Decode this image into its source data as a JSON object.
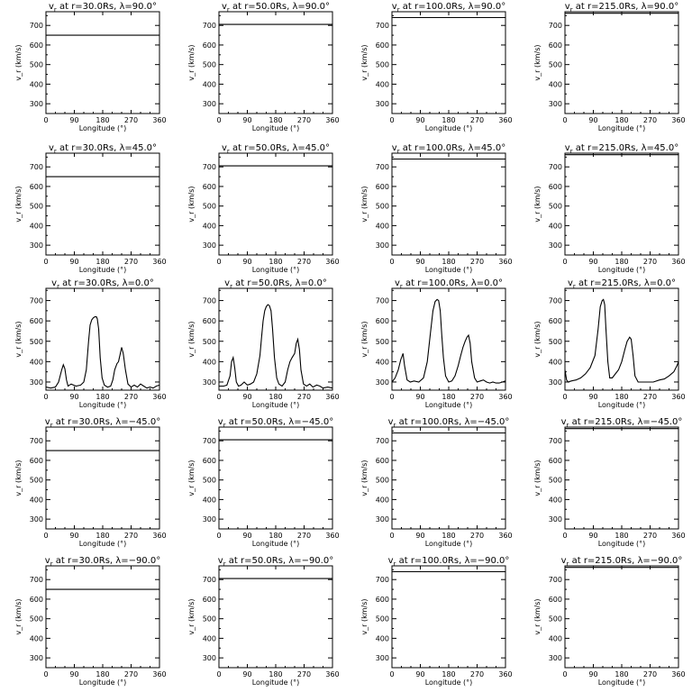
{
  "chart_data": [
    {
      "type": "line",
      "title": "v_r at r=30.0Rs, λ=90.0°",
      "title_main": "v",
      "title_sub": "r",
      "title_rest": " at r=30.0Rs, λ=90.0°",
      "xlabel": "Longitude (°)",
      "ylabel": "v_r (km/s)",
      "xlim": [
        0,
        360
      ],
      "ylim": [
        250,
        770
      ],
      "xticks": [
        0,
        90,
        180,
        270,
        360
      ],
      "yticks": [
        300,
        400,
        500,
        600,
        700
      ],
      "grid": false,
      "series": [
        {
          "x": [
            0,
            360
          ],
          "y": [
            650,
            650
          ]
        }
      ]
    },
    {
      "type": "line",
      "title": "v_r at r=50.0Rs, λ=90.0°",
      "title_main": "v",
      "title_sub": "r",
      "title_rest": " at r=50.0Rs, λ=90.0°",
      "xlabel": "Longitude (°)",
      "ylabel": "v_r (km/s)",
      "xlim": [
        0,
        360
      ],
      "ylim": [
        250,
        770
      ],
      "xticks": [
        0,
        90,
        180,
        270,
        360
      ],
      "yticks": [
        300,
        400,
        500,
        600,
        700
      ],
      "grid": false,
      "series": [
        {
          "x": [
            0,
            360
          ],
          "y": [
            705,
            705
          ]
        }
      ]
    },
    {
      "type": "line",
      "title": "v_r at r=100.0Rs, λ=90.0°",
      "title_main": "v",
      "title_sub": "r",
      "title_rest": " at r=100.0Rs, λ=90.0°",
      "xlabel": "Longitude (°)",
      "ylabel": "v_r (km/s)",
      "xlim": [
        0,
        360
      ],
      "ylim": [
        250,
        770
      ],
      "xticks": [
        0,
        90,
        180,
        270,
        360
      ],
      "yticks": [
        300,
        400,
        500,
        600,
        700
      ],
      "grid": false,
      "series": [
        {
          "x": [
            0,
            360
          ],
          "y": [
            740,
            740
          ]
        }
      ]
    },
    {
      "type": "line",
      "title": "v_r at r=215.0Rs, λ=90.0°",
      "title_main": "v",
      "title_sub": "r",
      "title_rest": " at r=215.0Rs, λ=90.0°",
      "xlabel": "Longitude (°)",
      "ylabel": "v_r (km/s)",
      "xlim": [
        0,
        360
      ],
      "ylim": [
        250,
        770
      ],
      "xticks": [
        0,
        90,
        180,
        270,
        360
      ],
      "yticks": [
        300,
        400,
        500,
        600,
        700
      ],
      "grid": false,
      "series": [
        {
          "x": [
            0,
            360
          ],
          "y": [
            762,
            762
          ]
        }
      ]
    },
    {
      "type": "line",
      "title": "v_r at r=30.0Rs, λ=45.0°",
      "title_main": "v",
      "title_sub": "r",
      "title_rest": " at r=30.0Rs, λ=45.0°",
      "xlabel": "Longitude (°)",
      "ylabel": "v_r (km/s)",
      "xlim": [
        0,
        360
      ],
      "ylim": [
        250,
        770
      ],
      "xticks": [
        0,
        90,
        180,
        270,
        360
      ],
      "yticks": [
        300,
        400,
        500,
        600,
        700
      ],
      "grid": false,
      "series": [
        {
          "x": [
            0,
            360
          ],
          "y": [
            650,
            650
          ]
        }
      ]
    },
    {
      "type": "line",
      "title": "v_r at r=50.0Rs, λ=45.0°",
      "title_main": "v",
      "title_sub": "r",
      "title_rest": " at r=50.0Rs, λ=45.0°",
      "xlabel": "Longitude (°)",
      "ylabel": "v_r (km/s)",
      "xlim": [
        0,
        360
      ],
      "ylim": [
        250,
        770
      ],
      "xticks": [
        0,
        90,
        180,
        270,
        360
      ],
      "yticks": [
        300,
        400,
        500,
        600,
        700
      ],
      "grid": false,
      "series": [
        {
          "x": [
            0,
            360
          ],
          "y": [
            705,
            705
          ]
        }
      ]
    },
    {
      "type": "line",
      "title": "v_r at r=100.0Rs, λ=45.0°",
      "title_main": "v",
      "title_sub": "r",
      "title_rest": " at r=100.0Rs, λ=45.0°",
      "xlabel": "Longitude (°)",
      "ylabel": "v_r (km/s)",
      "xlim": [
        0,
        360
      ],
      "ylim": [
        250,
        770
      ],
      "xticks": [
        0,
        90,
        180,
        270,
        360
      ],
      "yticks": [
        300,
        400,
        500,
        600,
        700
      ],
      "grid": false,
      "series": [
        {
          "x": [
            0,
            360
          ],
          "y": [
            740,
            740
          ]
        }
      ]
    },
    {
      "type": "line",
      "title": "v_r at r=215.0Rs, λ=45.0°",
      "title_main": "v",
      "title_sub": "r",
      "title_rest": " at r=215.0Rs, λ=45.0°",
      "xlabel": "Longitude (°)",
      "ylabel": "v_r (km/s)",
      "xlim": [
        0,
        360
      ],
      "ylim": [
        250,
        770
      ],
      "xticks": [
        0,
        90,
        180,
        270,
        360
      ],
      "yticks": [
        300,
        400,
        500,
        600,
        700
      ],
      "grid": false,
      "series": [
        {
          "x": [
            0,
            360
          ],
          "y": [
            762,
            762
          ]
        }
      ]
    },
    {
      "type": "line",
      "title": "v_r at r=30.0Rs, λ=0.0°",
      "title_main": "v",
      "title_sub": "r",
      "title_rest": " at r=30.0Rs, λ=0.0°",
      "xlabel": "Longitude (°)",
      "ylabel": "v_r (km/s)",
      "xlim": [
        0,
        360
      ],
      "ylim": [
        260,
        760
      ],
      "xticks": [
        0,
        90,
        180,
        270,
        360
      ],
      "yticks": [
        300,
        400,
        500,
        600,
        700
      ],
      "grid": false,
      "series": [
        {
          "x": [
            0,
            15,
            30,
            40,
            50,
            55,
            60,
            65,
            70,
            80,
            95,
            110,
            120,
            128,
            135,
            140,
            145,
            150,
            155,
            160,
            163,
            167,
            172,
            178,
            185,
            195,
            205,
            212,
            218,
            225,
            230,
            235,
            240,
            245,
            252,
            260,
            270,
            280,
            290,
            300,
            310,
            320,
            330,
            340,
            350,
            360
          ],
          "y": [
            275,
            270,
            275,
            300,
            360,
            385,
            365,
            310,
            280,
            290,
            280,
            285,
            300,
            360,
            500,
            580,
            605,
            615,
            620,
            620,
            610,
            560,
            420,
            320,
            285,
            275,
            280,
            310,
            360,
            390,
            400,
            435,
            470,
            440,
            360,
            290,
            275,
            285,
            275,
            290,
            280,
            270,
            275,
            270,
            280,
            285
          ]
        }
      ]
    },
    {
      "type": "line",
      "title": "v_r at r=50.0Rs, λ=0.0°",
      "title_main": "v",
      "title_sub": "r",
      "title_rest": " at r=50.0Rs, λ=0.0°",
      "xlabel": "Longitude (°)",
      "ylabel": "v_r (km/s)",
      "xlim": [
        0,
        360
      ],
      "ylim": [
        260,
        760
      ],
      "xticks": [
        0,
        90,
        180,
        270,
        360
      ],
      "yticks": [
        300,
        400,
        500,
        600,
        700
      ],
      "grid": false,
      "series": [
        {
          "x": [
            0,
            15,
            25,
            35,
            40,
            45,
            50,
            55,
            62,
            70,
            80,
            90,
            100,
            110,
            120,
            130,
            135,
            140,
            145,
            150,
            155,
            160,
            165,
            170,
            176,
            183,
            190,
            200,
            210,
            218,
            225,
            232,
            240,
            245,
            250,
            255,
            260,
            268,
            278,
            288,
            298,
            310,
            320,
            330,
            345,
            360
          ],
          "y": [
            280,
            280,
            285,
            330,
            400,
            420,
            370,
            300,
            280,
            285,
            300,
            285,
            290,
            300,
            340,
            430,
            520,
            600,
            650,
            670,
            680,
            675,
            650,
            560,
            420,
            320,
            290,
            280,
            300,
            360,
            400,
            420,
            440,
            490,
            510,
            460,
            360,
            290,
            280,
            290,
            275,
            285,
            280,
            270,
            275,
            270
          ]
        }
      ]
    },
    {
      "type": "line",
      "title": "v_r at r=100.0Rs, λ=0.0°",
      "title_main": "v",
      "title_sub": "r",
      "title_rest": " at r=100.0Rs, λ=0.0°",
      "xlabel": "Longitude (°)",
      "ylabel": "v_r (km/s)",
      "xlim": [
        0,
        360
      ],
      "ylim": [
        260,
        760
      ],
      "xticks": [
        0,
        90,
        180,
        270,
        360
      ],
      "yticks": [
        300,
        400,
        500,
        600,
        700
      ],
      "grid": false,
      "series": [
        {
          "x": [
            0,
            10,
            20,
            28,
            35,
            40,
            48,
            58,
            70,
            85,
            100,
            112,
            122,
            130,
            137,
            143,
            148,
            153,
            158,
            163,
            170,
            180,
            190,
            200,
            210,
            218,
            225,
            232,
            238,
            243,
            248,
            253,
            262,
            270,
            280,
            290,
            300,
            310,
            320,
            330,
            340,
            350,
            360
          ],
          "y": [
            300,
            320,
            360,
            410,
            440,
            380,
            310,
            300,
            305,
            300,
            320,
            400,
            540,
            650,
            695,
            705,
            700,
            650,
            530,
            420,
            330,
            300,
            305,
            330,
            380,
            430,
            470,
            500,
            520,
            530,
            490,
            400,
            320,
            300,
            305,
            310,
            300,
            295,
            300,
            295,
            295,
            300,
            305
          ]
        }
      ]
    },
    {
      "type": "line",
      "title": "v_r at r=215.0Rs, λ=0.0°",
      "title_main": "v",
      "title_sub": "r",
      "title_rest": " at r=215.0Rs, λ=0.0°",
      "xlabel": "Longitude (°)",
      "ylabel": "v_r (km/s)",
      "xlim": [
        0,
        360
      ],
      "ylim": [
        260,
        760
      ],
      "xticks": [
        0,
        90,
        180,
        270,
        360
      ],
      "yticks": [
        300,
        400,
        500,
        600,
        700
      ],
      "grid": false,
      "series": [
        {
          "x": [
            0,
            5,
            10,
            20,
            35,
            50,
            65,
            80,
            95,
            105,
            112,
            118,
            122,
            126,
            130,
            136,
            142,
            150,
            160,
            170,
            180,
            190,
            197,
            205,
            210,
            216,
            222,
            232,
            245,
            260,
            280,
            300,
            315,
            330,
            345,
            355,
            360
          ],
          "y": [
            360,
            310,
            300,
            305,
            310,
            320,
            340,
            370,
            430,
            560,
            670,
            700,
            705,
            680,
            560,
            400,
            320,
            320,
            340,
            360,
            400,
            460,
            500,
            520,
            510,
            430,
            330,
            300,
            300,
            300,
            300,
            310,
            315,
            330,
            350,
            380,
            400
          ]
        }
      ]
    },
    {
      "type": "line",
      "title": "v_r at r=30.0Rs, λ=-45.0°",
      "title_main": "v",
      "title_sub": "r",
      "title_rest": " at r=30.0Rs, λ=−45.0°",
      "xlabel": "Longitude (°)",
      "ylabel": "v_r (km/s)",
      "xlim": [
        0,
        360
      ],
      "ylim": [
        250,
        770
      ],
      "xticks": [
        0,
        90,
        180,
        270,
        360
      ],
      "yticks": [
        300,
        400,
        500,
        600,
        700
      ],
      "grid": false,
      "series": [
        {
          "x": [
            0,
            360
          ],
          "y": [
            650,
            650
          ]
        }
      ]
    },
    {
      "type": "line",
      "title": "v_r at r=50.0Rs, λ=-45.0°",
      "title_main": "v",
      "title_sub": "r",
      "title_rest": " at r=50.0Rs, λ=−45.0°",
      "xlabel": "Longitude (°)",
      "ylabel": "v_r (km/s)",
      "xlim": [
        0,
        360
      ],
      "ylim": [
        250,
        770
      ],
      "xticks": [
        0,
        90,
        180,
        270,
        360
      ],
      "yticks": [
        300,
        400,
        500,
        600,
        700
      ],
      "grid": false,
      "series": [
        {
          "x": [
            0,
            360
          ],
          "y": [
            705,
            705
          ]
        }
      ]
    },
    {
      "type": "line",
      "title": "v_r at r=100.0Rs, λ=-45.0°",
      "title_main": "v",
      "title_sub": "r",
      "title_rest": " at r=100.0Rs, λ=−45.0°",
      "xlabel": "Longitude (°)",
      "ylabel": "v_r (km/s)",
      "xlim": [
        0,
        360
      ],
      "ylim": [
        250,
        770
      ],
      "xticks": [
        0,
        90,
        180,
        270,
        360
      ],
      "yticks": [
        300,
        400,
        500,
        600,
        700
      ],
      "grid": false,
      "series": [
        {
          "x": [
            0,
            360
          ],
          "y": [
            740,
            740
          ]
        }
      ]
    },
    {
      "type": "line",
      "title": "v_r at r=215.0Rs, λ=-45.0°",
      "title_main": "v",
      "title_sub": "r",
      "title_rest": " at r=215.0Rs, λ=−45.0°",
      "xlabel": "Longitude (°)",
      "ylabel": "v_r (km/s)",
      "xlim": [
        0,
        360
      ],
      "ylim": [
        250,
        770
      ],
      "xticks": [
        0,
        90,
        180,
        270,
        360
      ],
      "yticks": [
        300,
        400,
        500,
        600,
        700
      ],
      "grid": false,
      "series": [
        {
          "x": [
            0,
            360
          ],
          "y": [
            762,
            762
          ]
        }
      ]
    },
    {
      "type": "line",
      "title": "v_r at r=30.0Rs, λ=-90.0°",
      "title_main": "v",
      "title_sub": "r",
      "title_rest": " at r=30.0Rs, λ=−90.0°",
      "xlabel": "Longitude (°)",
      "ylabel": "v_r (km/s)",
      "xlim": [
        0,
        360
      ],
      "ylim": [
        250,
        770
      ],
      "xticks": [
        0,
        90,
        180,
        270,
        360
      ],
      "yticks": [
        300,
        400,
        500,
        600,
        700
      ],
      "grid": false,
      "series": [
        {
          "x": [
            0,
            360
          ],
          "y": [
            650,
            650
          ]
        }
      ]
    },
    {
      "type": "line",
      "title": "v_r at r=50.0Rs, λ=-90.0°",
      "title_main": "v",
      "title_sub": "r",
      "title_rest": " at r=50.0Rs, λ=−90.0°",
      "xlabel": "Longitude (°)",
      "ylabel": "v_r (km/s)",
      "xlim": [
        0,
        360
      ],
      "ylim": [
        250,
        770
      ],
      "xticks": [
        0,
        90,
        180,
        270,
        360
      ],
      "yticks": [
        300,
        400,
        500,
        600,
        700
      ],
      "grid": false,
      "series": [
        {
          "x": [
            0,
            360
          ],
          "y": [
            705,
            705
          ]
        }
      ]
    },
    {
      "type": "line",
      "title": "v_r at r=100.0Rs, λ=-90.0°",
      "title_main": "v",
      "title_sub": "r",
      "title_rest": " at r=100.0Rs, λ=−90.0°",
      "xlabel": "Longitude (°)",
      "ylabel": "v_r (km/s)",
      "xlim": [
        0,
        360
      ],
      "ylim": [
        250,
        770
      ],
      "xticks": [
        0,
        90,
        180,
        270,
        360
      ],
      "yticks": [
        300,
        400,
        500,
        600,
        700
      ],
      "grid": false,
      "series": [
        {
          "x": [
            0,
            360
          ],
          "y": [
            740,
            740
          ]
        }
      ]
    },
    {
      "type": "line",
      "title": "v_r at r=215.0Rs, λ=-90.0°",
      "title_main": "v",
      "title_sub": "r",
      "title_rest": " at r=215.0Rs, λ=−90.0°",
      "xlabel": "Longitude (°)",
      "ylabel": "v_r (km/s)",
      "xlim": [
        0,
        360
      ],
      "ylim": [
        250,
        770
      ],
      "xticks": [
        0,
        90,
        180,
        270,
        360
      ],
      "yticks": [
        300,
        400,
        500,
        600,
        700
      ],
      "grid": false,
      "series": [
        {
          "x": [
            0,
            360
          ],
          "y": [
            762,
            762
          ]
        }
      ]
    }
  ]
}
